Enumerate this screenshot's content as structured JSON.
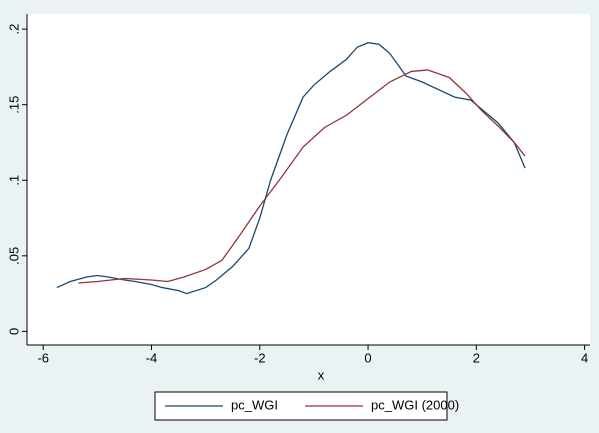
{
  "chart_data": {
    "type": "line",
    "xlabel": "x",
    "xlim": [
      -6.3,
      4.1
    ],
    "xticks": [
      -6,
      -4,
      -2,
      0,
      2,
      4
    ],
    "ylim": [
      -0.009,
      0.21
    ],
    "yticks": [
      {
        "value": 0,
        "label": "0"
      },
      {
        "value": 0.05,
        "label": ".05"
      },
      {
        "value": 0.1,
        "label": ".1"
      },
      {
        "value": 0.15,
        "label": ".15"
      },
      {
        "value": 0.2,
        "label": ".2"
      }
    ],
    "grid": false,
    "legend": "bottom",
    "series": [
      {
        "name": "pc_WGI",
        "color": "#1a476f",
        "x": [
          -5.75,
          -5.5,
          -5.2,
          -5,
          -4.8,
          -4.5,
          -4.3,
          -4,
          -3.8,
          -3.5,
          -3.35,
          -3,
          -2.8,
          -2.5,
          -2.2,
          -2,
          -1.8,
          -1.5,
          -1.2,
          -1,
          -0.7,
          -0.4,
          -0.2,
          0,
          0.2,
          0.4,
          0.7,
          1,
          1.3,
          1.6,
          1.9,
          2.1,
          2.4,
          2.7,
          2.9
        ],
        "values": [
          0.029,
          0.033,
          0.036,
          0.037,
          0.036,
          0.034,
          0.033,
          0.031,
          0.029,
          0.027,
          0.025,
          0.029,
          0.034,
          0.043,
          0.055,
          0.075,
          0.1,
          0.13,
          0.155,
          0.163,
          0.172,
          0.18,
          0.188,
          0.191,
          0.19,
          0.184,
          0.169,
          0.165,
          0.16,
          0.155,
          0.153,
          0.147,
          0.138,
          0.125,
          0.108
        ]
      },
      {
        "name": "pc_WGI (2000)",
        "color": "#90353b",
        "x": [
          -5.35,
          -5,
          -4.5,
          -4,
          -3.7,
          -3.4,
          -3,
          -2.7,
          -2.4,
          -2,
          -1.6,
          -1.2,
          -0.8,
          -0.4,
          0,
          0.4,
          0.8,
          1.1,
          1.5,
          1.8,
          2.1,
          2.4,
          2.7,
          2.9
        ],
        "values": [
          0.032,
          0.033,
          0.035,
          0.034,
          0.033,
          0.036,
          0.041,
          0.047,
          0.062,
          0.083,
          0.102,
          0.122,
          0.135,
          0.143,
          0.154,
          0.165,
          0.172,
          0.173,
          0.168,
          0.158,
          0.146,
          0.136,
          0.125,
          0.116
        ]
      }
    ]
  }
}
